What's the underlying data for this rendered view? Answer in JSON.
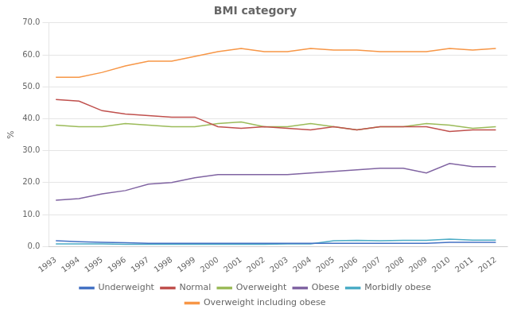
{
  "chart_data": {
    "type": "line",
    "title": "BMI category",
    "ylabel": "%",
    "x": [
      1993,
      1994,
      1995,
      1996,
      1997,
      1998,
      1999,
      2000,
      2001,
      2002,
      2003,
      2004,
      2005,
      2006,
      2007,
      2008,
      2009,
      2010,
      2011,
      2012
    ],
    "series": [
      {
        "name": "Underweight",
        "color": "#4472C4",
        "values": [
          1.8,
          1.5,
          1.3,
          1.2,
          1.0,
          1.0,
          1.0,
          1.0,
          1.0,
          1.0,
          1.0,
          1.0,
          1.0,
          1.0,
          1.0,
          1.0,
          1.0,
          1.3,
          1.3,
          1.3
        ]
      },
      {
        "name": "Normal",
        "color": "#C0504D",
        "values": [
          46.0,
          45.5,
          42.5,
          41.5,
          41.0,
          40.5,
          40.5,
          37.5,
          37.0,
          37.5,
          37.0,
          36.5,
          37.5,
          36.5,
          37.5,
          37.5,
          37.5,
          36.0,
          36.5,
          36.5
        ]
      },
      {
        "name": "Overweight",
        "color": "#9BBB59",
        "values": [
          38.0,
          37.5,
          37.5,
          38.5,
          38.0,
          37.5,
          37.5,
          38.5,
          39.0,
          37.5,
          37.5,
          38.5,
          37.5,
          36.5,
          37.5,
          37.5,
          38.5,
          38.0,
          37.0,
          37.5
        ]
      },
      {
        "name": "Obese",
        "color": "#8064A2",
        "values": [
          14.5,
          15.0,
          16.5,
          17.5,
          19.5,
          20.0,
          21.5,
          22.5,
          22.5,
          22.5,
          22.5,
          23.0,
          23.5,
          24.0,
          24.5,
          24.5,
          23.0,
          26.0,
          25.0,
          25.0
        ]
      },
      {
        "name": "Morbidly obese",
        "color": "#4BACC6",
        "values": [
          0.8,
          0.8,
          0.8,
          0.7,
          0.7,
          0.7,
          0.7,
          0.7,
          0.7,
          0.7,
          0.8,
          0.8,
          1.8,
          1.9,
          1.8,
          1.9,
          1.9,
          2.3,
          2.0,
          2.0
        ]
      },
      {
        "name": "Overweight including obese",
        "color": "#F79646",
        "values": [
          53.0,
          53.0,
          54.5,
          56.5,
          58.0,
          58.0,
          59.5,
          61.0,
          62.0,
          61.0,
          61.0,
          62.0,
          61.5,
          61.5,
          61.0,
          61.0,
          61.0,
          62.0,
          61.5,
          62.0
        ]
      }
    ],
    "xlim": [
      1992.7,
      2012.5
    ],
    "xticks": [
      1993,
      1994,
      1995,
      1996,
      1997,
      1998,
      1999,
      2000,
      2001,
      2002,
      2003,
      2004,
      2005,
      2006,
      2007,
      2008,
      2009,
      2010,
      2011,
      2012
    ],
    "ylim": [
      0.0,
      70.0
    ],
    "yticks": [
      {
        "value": 0,
        "label": "0.0"
      },
      {
        "value": 10,
        "label": "10.0"
      },
      {
        "value": 20,
        "label": "20.0"
      },
      {
        "value": 30,
        "label": "30.0"
      },
      {
        "value": 40,
        "label": "40.0"
      },
      {
        "value": 50,
        "label": "50.0"
      },
      {
        "value": 60,
        "label": "60.0"
      },
      {
        "value": 70,
        "label": "70.0"
      }
    ],
    "grid": "y",
    "legend": "bottom",
    "marker": "none"
  }
}
